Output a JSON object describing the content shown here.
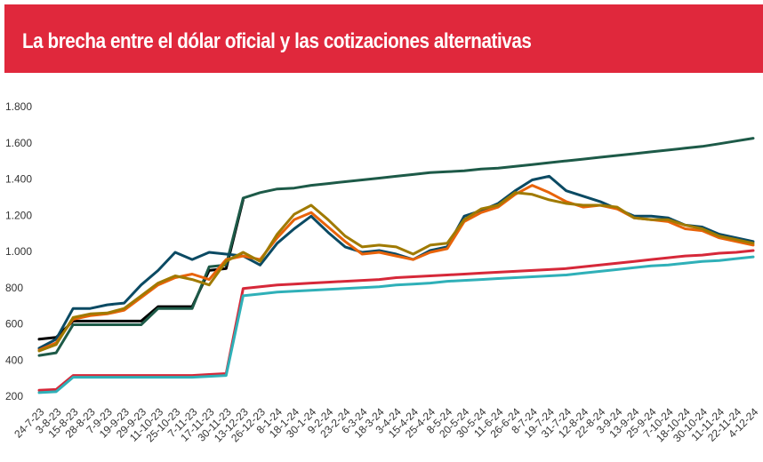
{
  "chart_data": {
    "type": "line",
    "title": "La brecha entre el dólar oficial y las cotizaciones alternativas",
    "categories": [
      "24-7-23",
      "3-8-23",
      "15-8-23",
      "28-8-23",
      "7-9-23",
      "19-9-23",
      "29-9-23",
      "11-10-23",
      "25-10-23",
      "7-11-23",
      "17-11-23",
      "30-11-23",
      "13-12-23",
      "26-12-23",
      "8-1-24",
      "18-1-24",
      "30-1-24",
      "9-2-24",
      "23-2-24",
      "6-3-24",
      "18-3-24",
      "3-4-24",
      "15-4-24",
      "25-4-24",
      "8-5-24",
      "20-5-24",
      "30-5-24",
      "11-6-24",
      "26-6-24",
      "8-7-24",
      "19-7-24",
      "31-7-24",
      "12-8-24",
      "22-8-24",
      "3-9-24",
      "13-9-24",
      "25-9-24",
      "7-10-24",
      "18-10-24",
      "30-10-24",
      "11-11-24",
      "22-11-24",
      "4-12-24"
    ],
    "series": [
      {
        "color": "#d62839",
        "values": [
          238,
          242,
          320,
          320,
          320,
          320,
          320,
          320,
          320,
          320,
          325,
          330,
          800,
          810,
          820,
          825,
          830,
          835,
          840,
          845,
          850,
          860,
          865,
          870,
          875,
          880,
          885,
          890,
          895,
          900,
          905,
          910,
          920,
          930,
          940,
          950,
          960,
          970,
          980,
          985,
          995,
          1000,
          1010
        ]
      },
      {
        "color": "#2fb0b8",
        "values": [
          225,
          230,
          310,
          310,
          310,
          310,
          310,
          310,
          310,
          310,
          315,
          320,
          760,
          770,
          780,
          785,
          790,
          795,
          800,
          805,
          810,
          820,
          825,
          830,
          840,
          845,
          850,
          855,
          860,
          865,
          870,
          875,
          885,
          895,
          905,
          915,
          925,
          930,
          940,
          950,
          955,
          965,
          975
        ]
      },
      {
        "color": "#000000",
        "values": [
          520,
          530,
          620,
          620,
          620,
          620,
          620,
          700,
          700,
          700,
          900,
          910,
          1290,
          null,
          null,
          null,
          null,
          null,
          null,
          null,
          null,
          null,
          null,
          null,
          null,
          null,
          null,
          null,
          null,
          null,
          null,
          null,
          null,
          null,
          null,
          null,
          null,
          null,
          null,
          null,
          null,
          null,
          null
        ]
      },
      {
        "color": "#1d5a48",
        "values": [
          430,
          445,
          600,
          600,
          600,
          600,
          600,
          690,
          690,
          690,
          920,
          930,
          1300,
          1330,
          1350,
          1355,
          1370,
          1380,
          1390,
          1400,
          1410,
          1420,
          1430,
          1440,
          1445,
          1450,
          1460,
          1465,
          1475,
          1485,
          1495,
          1505,
          1515,
          1525,
          1535,
          1545,
          1555,
          1565,
          1575,
          1585,
          1600,
          1615,
          1630
        ]
      },
      {
        "color": "#0b4a63",
        "values": [
          470,
          520,
          690,
          690,
          710,
          720,
          820,
          900,
          1000,
          960,
          1000,
          990,
          980,
          930,
          1050,
          1130,
          1200,
          1110,
          1030,
          1000,
          1010,
          990,
          960,
          1010,
          1030,
          1200,
          1230,
          1270,
          1340,
          1400,
          1420,
          1340,
          1310,
          1280,
          1240,
          1200,
          1200,
          1190,
          1150,
          1140,
          1100,
          1080,
          1060
        ]
      },
      {
        "color": "#e8630a",
        "values": [
          460,
          500,
          630,
          650,
          660,
          680,
          750,
          820,
          860,
          880,
          850,
          960,
          980,
          960,
          1080,
          1180,
          1220,
          1140,
          1060,
          990,
          1000,
          980,
          960,
          1000,
          1020,
          1170,
          1220,
          1250,
          1320,
          1370,
          1330,
          1280,
          1250,
          1260,
          1240,
          1190,
          1180,
          1170,
          1130,
          1120,
          1080,
          1060,
          1040
        ]
      },
      {
        "color": "#a07a00",
        "values": [
          455,
          490,
          640,
          660,
          665,
          690,
          760,
          830,
          870,
          850,
          820,
          950,
          1000,
          950,
          1100,
          1210,
          1260,
          1180,
          1090,
          1030,
          1040,
          1030,
          990,
          1040,
          1050,
          1180,
          1240,
          1260,
          1330,
          1320,
          1290,
          1270,
          1260,
          1260,
          1250,
          1190,
          1180,
          1180,
          1150,
          1130,
          1090,
          1070,
          1050
        ]
      }
    ],
    "ylim": [
      200,
      1800
    ],
    "yticks": [
      200,
      400,
      600,
      800,
      {
        "value": 1000,
        "label": "1.000"
      },
      {
        "value": 1200,
        "label": "1.200"
      },
      {
        "value": 1400,
        "label": "1.400"
      },
      {
        "value": 1600,
        "label": "1.600"
      },
      {
        "value": 1800,
        "label": "1.800"
      }
    ]
  }
}
